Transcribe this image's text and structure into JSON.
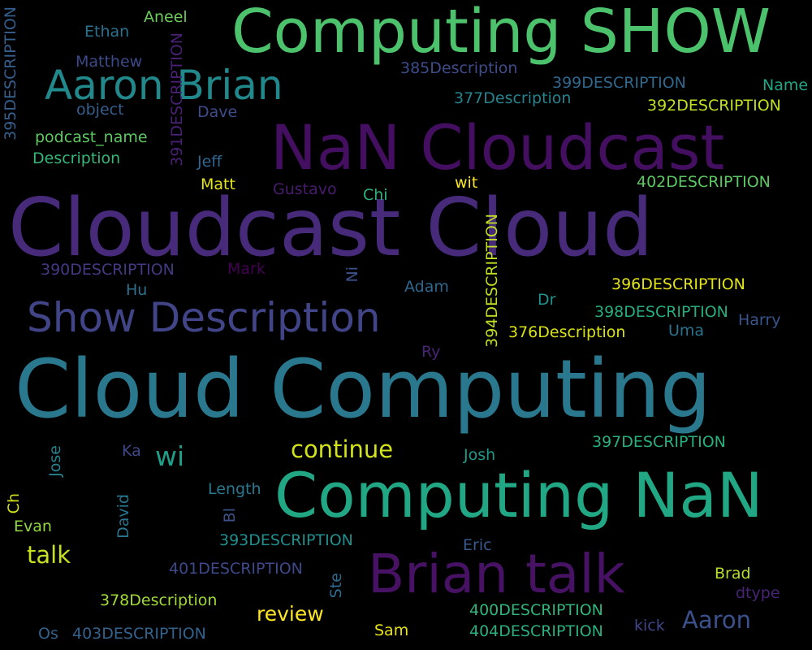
{
  "words": [
    {
      "text": "Computing SHOW",
      "color": "#4cc26c"
    },
    {
      "text": "NaN Cloudcast",
      "color": "#440f60"
    },
    {
      "text": "Cloudcast Cloud",
      "color": "#472a7a"
    },
    {
      "text": "Aaron Brian",
      "color": "#21898c"
    },
    {
      "text": "Show Description",
      "color": "#414487"
    },
    {
      "text": "Cloud Computing",
      "color": "#2a788e"
    },
    {
      "text": "Computing NaN",
      "color": "#22a785"
    },
    {
      "text": "Brian talk",
      "color": "#471164"
    },
    {
      "text": "continue",
      "color": "#d2e21b"
    },
    {
      "text": "wi",
      "color": "#1f9e89"
    },
    {
      "text": "talk",
      "color": "#c8e020"
    },
    {
      "text": "review",
      "color": "#fde725"
    },
    {
      "text": "Aaron",
      "color": "#3b518b"
    },
    {
      "text": "Aneel",
      "color": "#6ccd5a"
    },
    {
      "text": "Ethan",
      "color": "#2c728e"
    },
    {
      "text": "Matthew",
      "color": "#3e4a89"
    },
    {
      "text": "object",
      "color": "#355f8d"
    },
    {
      "text": "podcast_name",
      "color": "#5ec962"
    },
    {
      "text": "Description",
      "color": "#35b779"
    },
    {
      "text": "395DESCRIPTION",
      "color": "#355f8d"
    },
    {
      "text": "391DESCRIPTION",
      "color": "#482173"
    },
    {
      "text": "Dave",
      "color": "#3e4c8a"
    },
    {
      "text": "Jeff",
      "color": "#31668e"
    },
    {
      "text": "Matt",
      "color": "#e5e419"
    },
    {
      "text": "Gustavo",
      "color": "#481b6d"
    },
    {
      "text": "Chi",
      "color": "#2db27d"
    },
    {
      "text": "wit",
      "color": "#fde725"
    },
    {
      "text": "385Description",
      "color": "#3e4c8a"
    },
    {
      "text": "399DESCRIPTION",
      "color": "#31688e"
    },
    {
      "text": "Name",
      "color": "#21a685"
    },
    {
      "text": "377Description",
      "color": "#25848e"
    },
    {
      "text": "392DESCRIPTION",
      "color": "#c2df23"
    },
    {
      "text": "402DESCRIPTION",
      "color": "#5cc863"
    },
    {
      "text": "390DESCRIPTION",
      "color": "#443983"
    },
    {
      "text": "Mark",
      "color": "#440154"
    },
    {
      "text": "Ni",
      "color": "#3b528b"
    },
    {
      "text": "Adam",
      "color": "#31678e"
    },
    {
      "text": "394DESCRIPTION",
      "color": "#c0df25"
    },
    {
      "text": "Hu",
      "color": "#2c728e"
    },
    {
      "text": "Dr",
      "color": "#20928c"
    },
    {
      "text": "396DESCRIPTION",
      "color": "#e2e418"
    },
    {
      "text": "398DESCRIPTION",
      "color": "#27ad81"
    },
    {
      "text": "376Description",
      "color": "#d8e219"
    },
    {
      "text": "Uma",
      "color": "#2c728e"
    },
    {
      "text": "Harry",
      "color": "#39558c"
    },
    {
      "text": "Ry",
      "color": "#482576"
    },
    {
      "text": "Ka",
      "color": "#3f4889"
    },
    {
      "text": "Jose",
      "color": "#26828e"
    },
    {
      "text": "Josh",
      "color": "#1f9a8a"
    },
    {
      "text": "397DESCRIPTION",
      "color": "#2ab07f"
    },
    {
      "text": "Ch",
      "color": "#d2e21b"
    },
    {
      "text": "Evan",
      "color": "#93d741"
    },
    {
      "text": "David",
      "color": "#2a768e"
    },
    {
      "text": "Length",
      "color": "#2a788e"
    },
    {
      "text": "Bl",
      "color": "#3b528b"
    },
    {
      "text": "393DESCRIPTION",
      "color": "#218f8d"
    },
    {
      "text": "Eric",
      "color": "#38598c"
    },
    {
      "text": "401DESCRIPTION",
      "color": "#3e4989"
    },
    {
      "text": "Ste",
      "color": "#306a8e"
    },
    {
      "text": "Brad",
      "color": "#b5de2b"
    },
    {
      "text": "dtype",
      "color": "#482475"
    },
    {
      "text": "378Description",
      "color": "#a2da37"
    },
    {
      "text": "400DESCRIPTION",
      "color": "#31b57b"
    },
    {
      "text": "404DESCRIPTION",
      "color": "#2ab07f"
    },
    {
      "text": "kick",
      "color": "#3f4788"
    },
    {
      "text": "Sam",
      "color": "#e7e419"
    },
    {
      "text": "Os",
      "color": "#33628d"
    },
    {
      "text": "403DESCRIPTION",
      "color": "#33638d"
    }
  ]
}
